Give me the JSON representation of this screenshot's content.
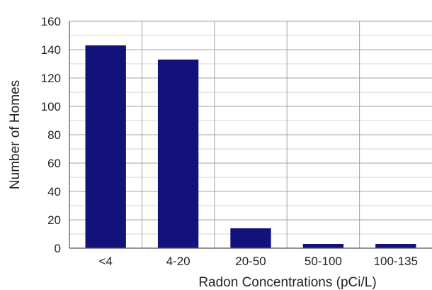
{
  "chart_data": {
    "type": "bar",
    "title": "",
    "xlabel": "Radon Concentrations (pCi/L)",
    "ylabel": "Number of Homes",
    "categories": [
      "<4",
      "4-20",
      "20-50",
      "50-100",
      "100-135"
    ],
    "values": [
      143,
      133,
      14,
      3,
      3
    ],
    "ylim": [
      0,
      160
    ],
    "yticks": [
      0,
      20,
      40,
      60,
      80,
      100,
      120,
      140,
      160
    ],
    "grid": true,
    "legend": "none",
    "colors": {
      "bar": "#12127a",
      "grid": "#9a9a9a",
      "axis": "#555555",
      "background": "#ffffff"
    }
  }
}
